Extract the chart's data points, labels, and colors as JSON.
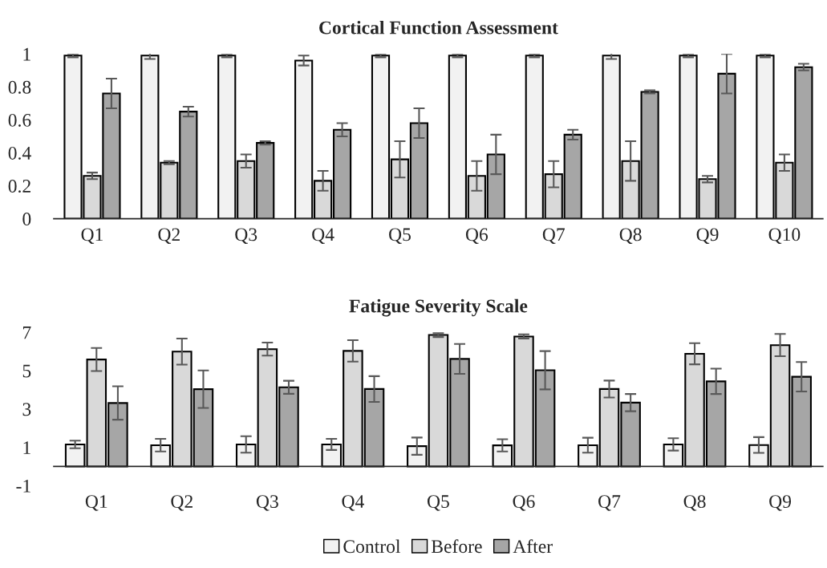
{
  "chart_data": [
    {
      "type": "bar",
      "title": "Cortical Function Assessment",
      "categories": [
        "Q1",
        "Q2",
        "Q3",
        "Q4",
        "Q5",
        "Q6",
        "Q7",
        "Q8",
        "Q9",
        "Q10"
      ],
      "series": [
        {
          "color": "#f2f2f2",
          "values": [
            0.99,
            0.99,
            0.99,
            0.96,
            0.99,
            0.99,
            0.99,
            0.99,
            0.99,
            0.99
          ],
          "errors": [
            0.01,
            0.02,
            0.01,
            0.03,
            0.01,
            0.01,
            0.01,
            0.02,
            0.01,
            0.01
          ]
        },
        {
          "color": "#d9d9d9",
          "values": [
            0.26,
            0.34,
            0.35,
            0.23,
            0.36,
            0.26,
            0.27,
            0.35,
            0.24,
            0.34
          ],
          "errors": [
            0.02,
            0.01,
            0.04,
            0.06,
            0.11,
            0.09,
            0.08,
            0.12,
            0.02,
            0.05
          ]
        },
        {
          "color": "#a6a6a6",
          "values": [
            0.76,
            0.65,
            0.46,
            0.54,
            0.58,
            0.39,
            0.51,
            0.77,
            0.88,
            0.92
          ],
          "errors": [
            0.09,
            0.03,
            0.01,
            0.04,
            0.09,
            0.12,
            0.03,
            0.01,
            0.12,
            0.02
          ]
        }
      ],
      "ylim": [
        0,
        1
      ],
      "yticks": [
        0,
        0.2,
        0.4,
        0.6,
        0.8,
        1
      ],
      "grid": false
    },
    {
      "type": "bar",
      "title": "Fatigue Severity Scale",
      "categories": [
        "Q1",
        "Q2",
        "Q3",
        "Q4",
        "Q5",
        "Q6",
        "Q7",
        "Q8",
        "Q9"
      ],
      "series": [
        {
          "name": "Control",
          "color": "#f2f2f2",
          "values": [
            1.15,
            1.11,
            1.15,
            1.15,
            1.06,
            1.1,
            1.11,
            1.15,
            1.12
          ],
          "errors": [
            0.2,
            0.33,
            0.43,
            0.29,
            0.45,
            0.32,
            0.39,
            0.32,
            0.41
          ]
        },
        {
          "name": "Before",
          "color": "#d9d9d9",
          "values": [
            5.58,
            5.99,
            6.12,
            6.03,
            6.86,
            6.78,
            4.04,
            5.88,
            6.33
          ],
          "errors": [
            0.6,
            0.68,
            0.34,
            0.56,
            0.11,
            0.11,
            0.44,
            0.55,
            0.58
          ]
        },
        {
          "name": "After",
          "color": "#a6a6a6",
          "values": [
            3.31,
            4.03,
            4.13,
            4.04,
            5.61,
            5.02,
            3.33,
            4.44,
            4.68
          ],
          "errors": [
            0.87,
            0.98,
            0.34,
            0.67,
            0.78,
            1.0,
            0.45,
            0.66,
            0.77
          ]
        }
      ],
      "ylim": [
        -1,
        7
      ],
      "yticks": [
        -1,
        1,
        3,
        5,
        7
      ],
      "grid": false,
      "legend": "bottom"
    }
  ]
}
